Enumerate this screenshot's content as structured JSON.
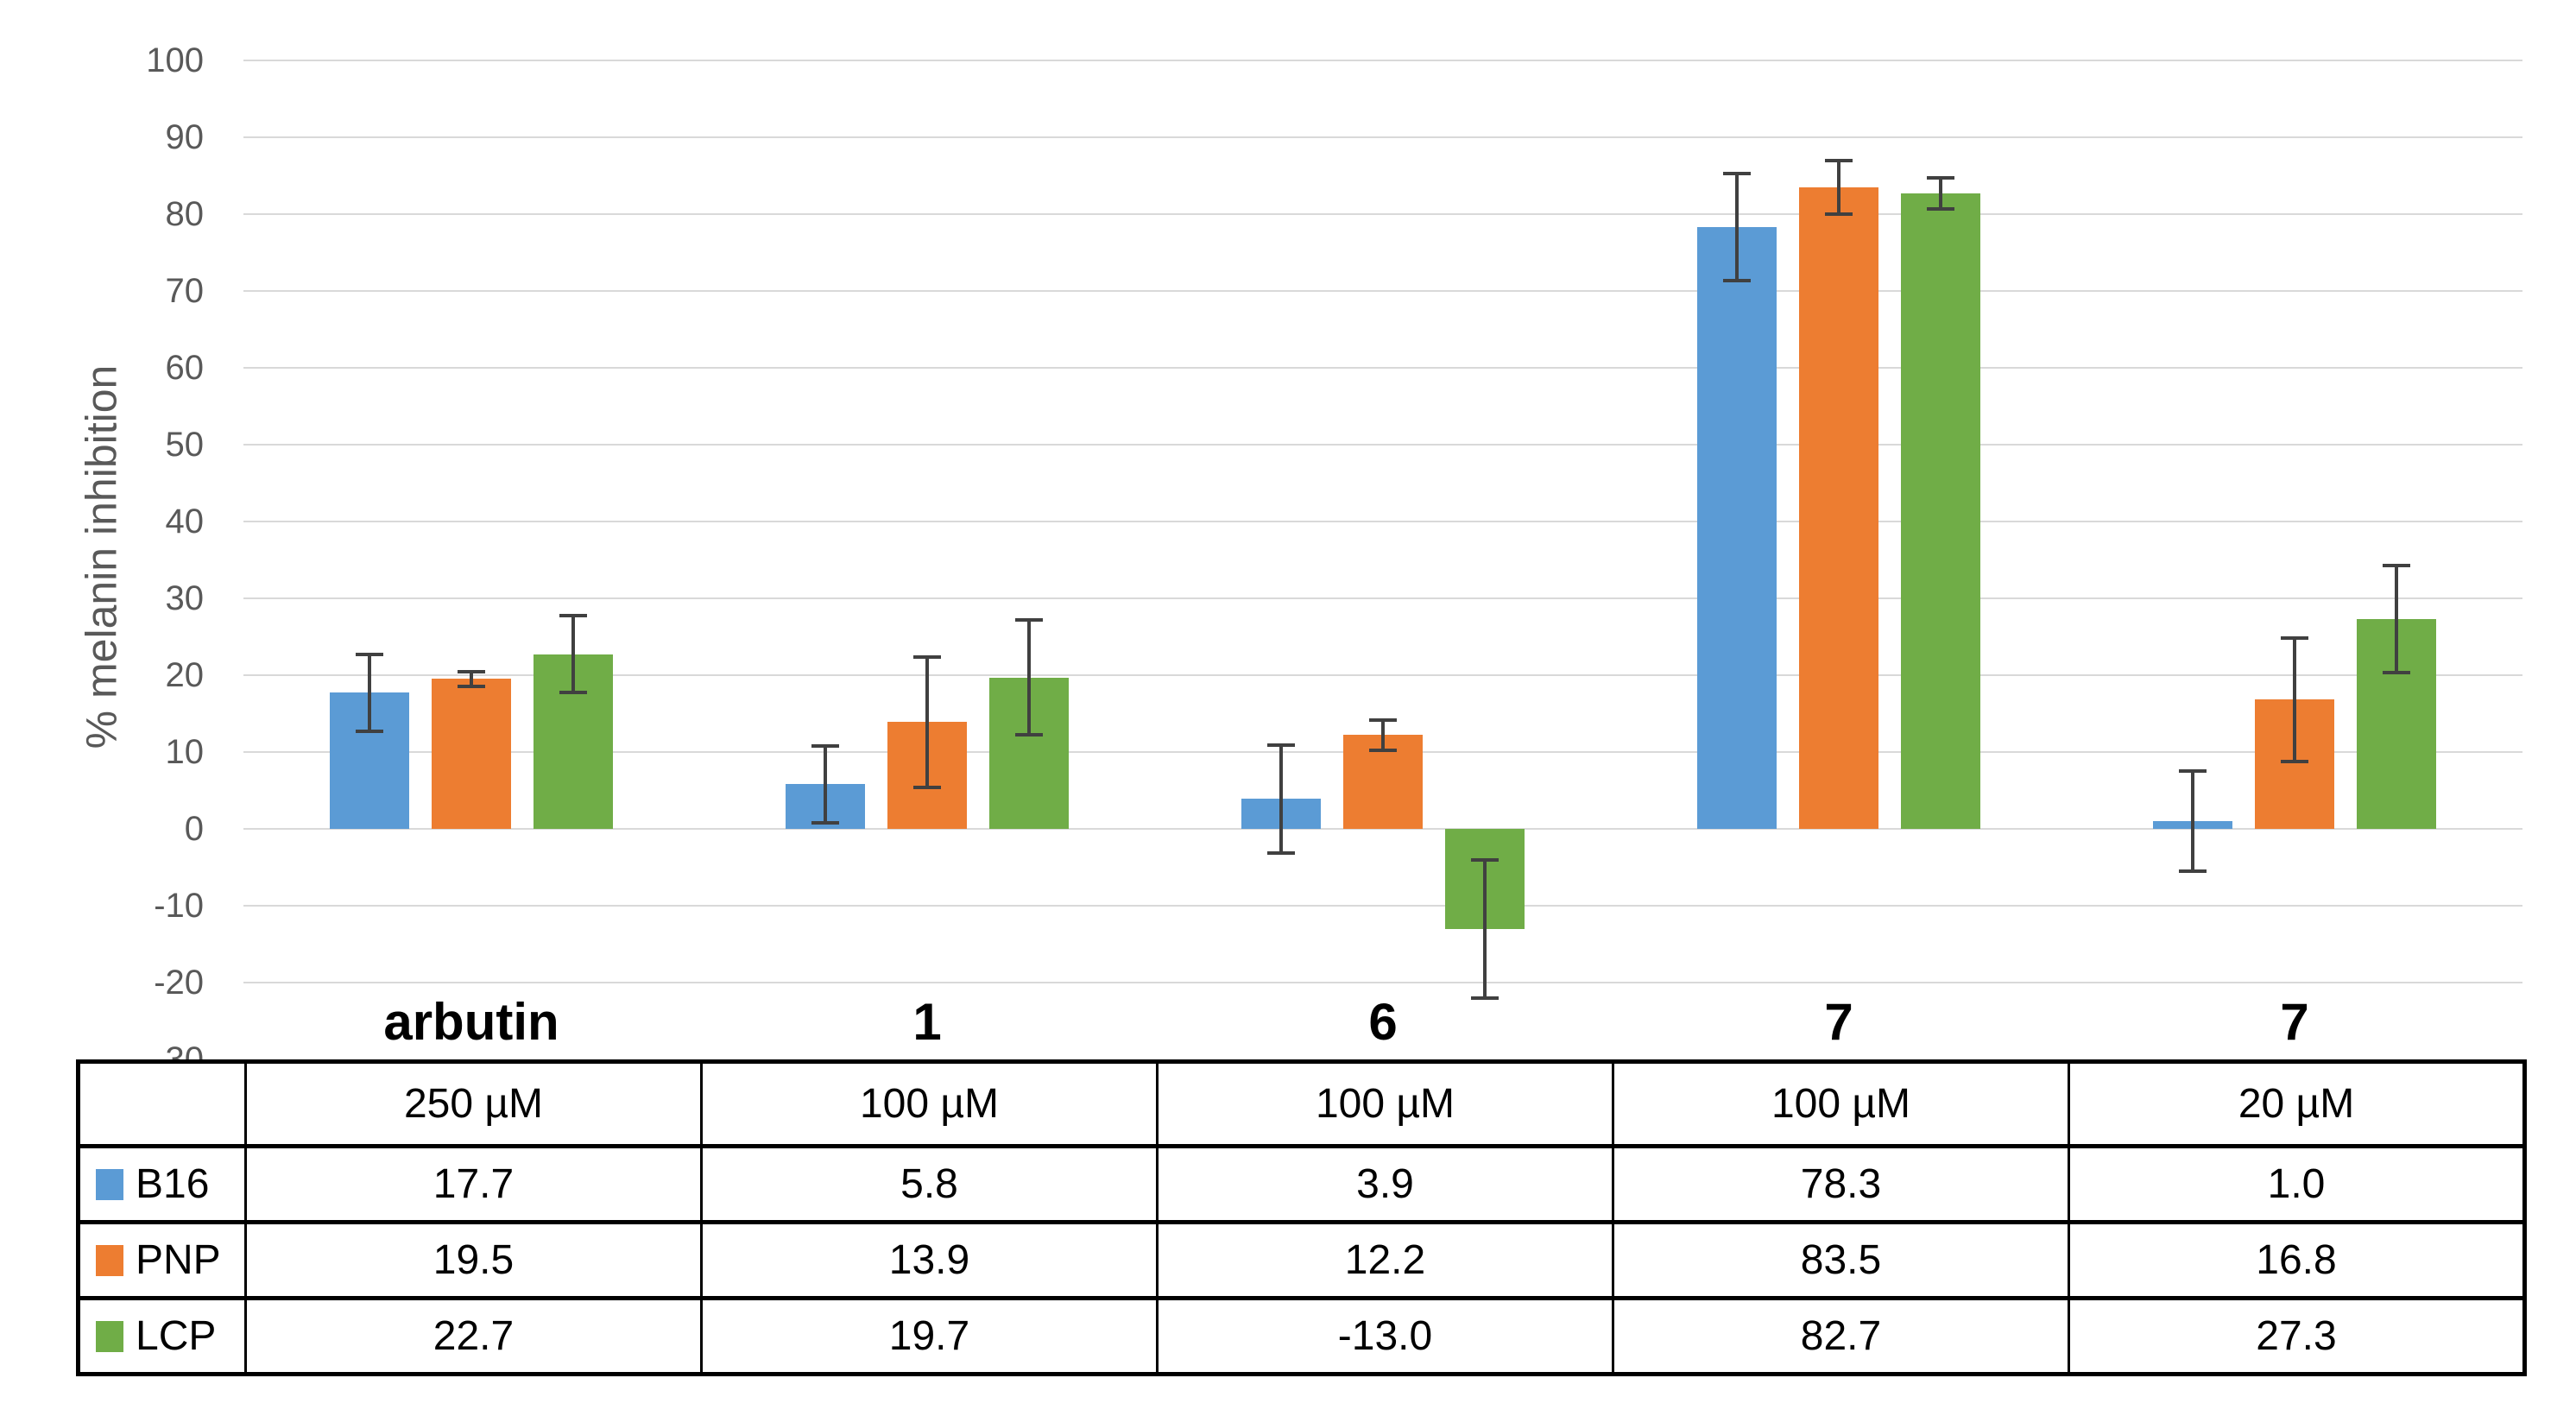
{
  "chart_data": {
    "type": "bar",
    "title": "",
    "ylabel": "% melanin inhibition",
    "ylim": [
      -30,
      100
    ],
    "ytick_step": 10,
    "grid": true,
    "legend_position": "table-row-headers",
    "categories": [
      "arbutin",
      "1",
      "6",
      "7",
      "7"
    ],
    "concentrations": [
      "250 µM",
      "100 µM",
      "100 µM",
      "100 µM",
      "20 µM"
    ],
    "series": [
      {
        "name": "B16",
        "color": "#5B9BD5",
        "values": [
          17.7,
          5.8,
          3.9,
          78.3,
          1.0
        ],
        "errors": [
          5.0,
          5.0,
          7.0,
          7.0,
          6.5
        ]
      },
      {
        "name": "PNP",
        "color": "#ED7D31",
        "values": [
          19.5,
          13.9,
          12.2,
          83.5,
          16.8
        ],
        "errors": [
          1.0,
          8.5,
          2.0,
          3.5,
          8.0
        ]
      },
      {
        "name": "LCP",
        "color": "#70AD47",
        "values": [
          22.7,
          19.7,
          -13.0,
          82.7,
          27.3
        ],
        "errors": [
          5.0,
          7.5,
          9.0,
          2.0,
          7.0
        ]
      }
    ],
    "value_format_decimals": 1,
    "colors": {
      "gridline": "#d9d9d9",
      "axis_text": "#595959",
      "error_bar": "#404040",
      "table_border": "#000000"
    }
  }
}
